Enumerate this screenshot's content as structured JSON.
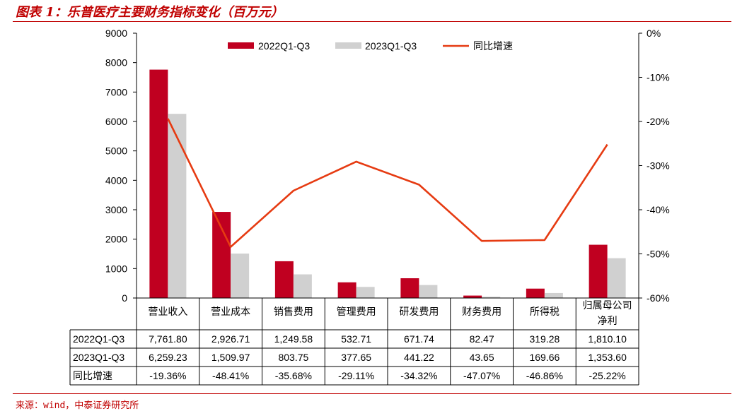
{
  "title": "图表 1：乐普医疗主要财务指标变化（百万元）",
  "source": "来源：wind，中泰证券研究所",
  "colors": {
    "series1": "#c00020",
    "series2": "#d0d0d0",
    "line": "#e63b12",
    "accent": "#c00000"
  },
  "chart_data": {
    "type": "bar",
    "categories": [
      "营业收入",
      "营业成本",
      "销售费用",
      "管理费用",
      "研发费用",
      "财务费用",
      "所得税",
      "归属母公司净利"
    ],
    "category_display": [
      [
        "营业收入"
      ],
      [
        "营业成本"
      ],
      [
        "销售费用"
      ],
      [
        "管理费用"
      ],
      [
        "研发费用"
      ],
      [
        "财务费用"
      ],
      [
        "所得税"
      ],
      [
        "归属母公司",
        "净利"
      ]
    ],
    "series": [
      {
        "name": "2022Q1-Q3",
        "type": "bar",
        "values": [
          7761.8,
          2926.71,
          1249.58,
          532.71,
          671.74,
          82.47,
          319.28,
          1810.1
        ],
        "labels": [
          "7,761.80",
          "2,926.71",
          "1,249.58",
          "532.71",
          "671.74",
          "82.47",
          "319.28",
          "1,810.10"
        ]
      },
      {
        "name": "2023Q1-Q3",
        "type": "bar",
        "values": [
          6259.23,
          1509.97,
          803.75,
          377.65,
          441.22,
          43.65,
          169.66,
          1353.6
        ],
        "labels": [
          "6,259.23",
          "1,509.97",
          "803.75",
          "377.65",
          "441.22",
          "43.65",
          "169.66",
          "1,353.60"
        ]
      },
      {
        "name": "同比增速",
        "type": "line",
        "axis": "right",
        "values": [
          -19.36,
          -48.41,
          -35.68,
          -29.11,
          -34.32,
          -47.07,
          -46.86,
          -25.22
        ],
        "labels": [
          "-19.36%",
          "-48.41%",
          "-35.68%",
          "-29.11%",
          "-34.32%",
          "-47.07%",
          "-46.86%",
          "-25.22%"
        ]
      }
    ],
    "ylim": [
      0,
      9000
    ],
    "yticks": [
      0,
      1000,
      2000,
      3000,
      4000,
      5000,
      6000,
      7000,
      8000,
      9000
    ],
    "ytick_labels": [
      "0",
      "1000",
      "2000",
      "3000",
      "4000",
      "5000",
      "6000",
      "7000",
      "8000",
      "9000"
    ],
    "y2lim": [
      -60,
      0
    ],
    "y2ticks": [
      -60,
      -50,
      -40,
      -30,
      -20,
      -10,
      0
    ],
    "y2tick_labels": [
      "-60%",
      "-50%",
      "-40%",
      "-30%",
      "-20%",
      "-10%",
      "0%"
    ],
    "legend_position": "top-center",
    "data_table": true,
    "grid": false
  }
}
